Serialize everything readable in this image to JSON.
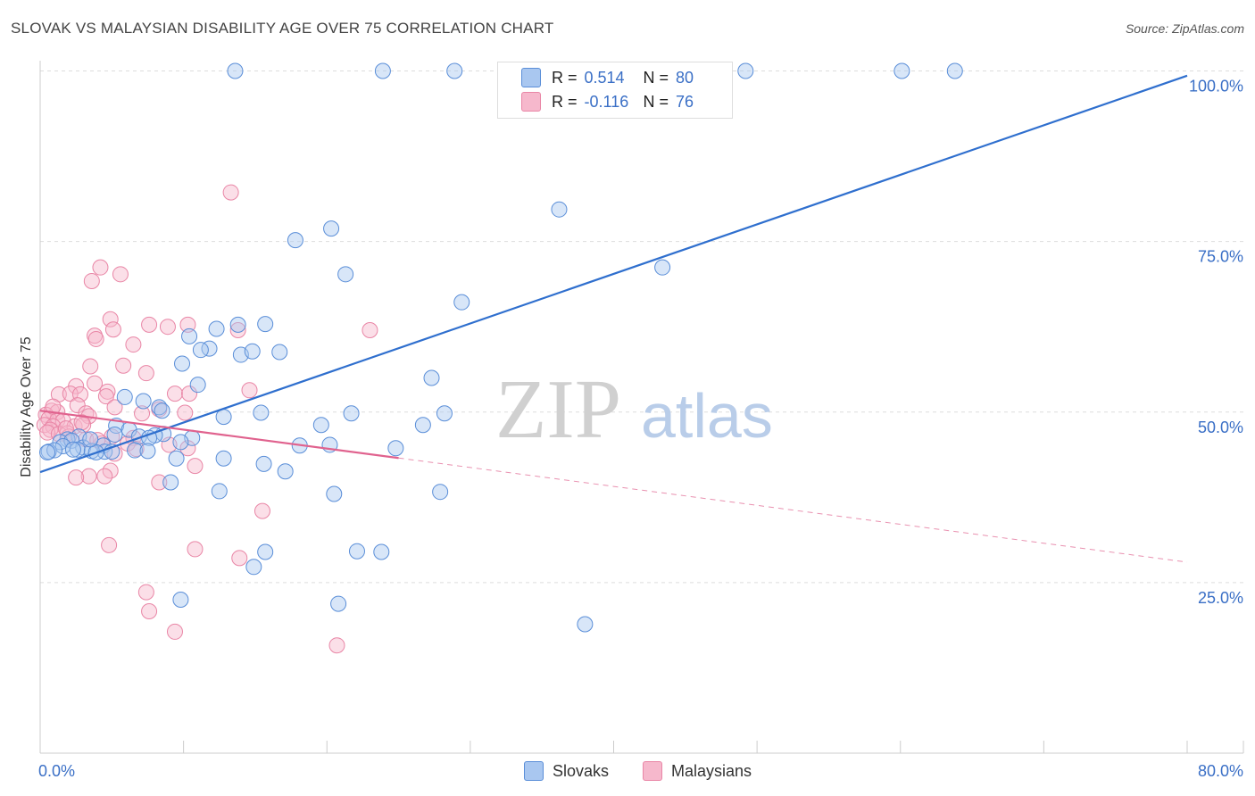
{
  "title": "SLOVAK VS MALAYSIAN DISABILITY AGE OVER 75 CORRELATION CHART",
  "source": "Source: ZipAtlas.com",
  "watermark": {
    "zip": "ZIP",
    "atlas": "atlas"
  },
  "legend": {
    "r_label": "R =",
    "n_label": "N =",
    "rows": [
      {
        "r": "0.514",
        "n": "80"
      },
      {
        "r": "-0.116",
        "n": "76"
      }
    ]
  },
  "bottom_legend": [
    "Slovaks",
    "Malaysians"
  ],
  "colors": {
    "slovak_fill": "#a9c7f0",
    "slovak_stroke": "#5a8ed8",
    "slovak_line": "#2f6fce",
    "malaysian_fill": "#f6b8cc",
    "malaysian_stroke": "#e986a6",
    "malaysian_line": "#e0628e",
    "axis_text": "#3a6fc6",
    "grid": "#dddddd"
  },
  "chart_data": {
    "type": "scatter",
    "title": "SLOVAK VS MALAYSIAN DISABILITY AGE OVER 75 CORRELATION CHART",
    "xlabel": "",
    "ylabel": "Disability Age Over 75",
    "xlim": [
      0,
      80
    ],
    "ylim": [
      0,
      104
    ],
    "x_tick_labels": [
      "0.0%",
      "80.0%"
    ],
    "y_ticks": [
      25,
      50,
      75,
      100
    ],
    "y_tick_labels": [
      "25.0%",
      "50.0%",
      "75.0%",
      "100.0%"
    ],
    "grid": true,
    "series": [
      {
        "name": "Slovaks",
        "points": [
          [
            13.6,
            100
          ],
          [
            23.9,
            100
          ],
          [
            28.9,
            100
          ],
          [
            49.2,
            100
          ],
          [
            60.1,
            100
          ],
          [
            63.8,
            100
          ],
          [
            36.2,
            79.7
          ],
          [
            20.3,
            76.9
          ],
          [
            17.8,
            75.2
          ],
          [
            43.4,
            71.2
          ],
          [
            21.3,
            70.2
          ],
          [
            29.4,
            66.1
          ],
          [
            13.8,
            62.8
          ],
          [
            15.7,
            62.9
          ],
          [
            12.3,
            62.2
          ],
          [
            10.4,
            61.1
          ],
          [
            11.8,
            59.3
          ],
          [
            11.2,
            59.1
          ],
          [
            14.0,
            58.4
          ],
          [
            14.8,
            58.9
          ],
          [
            16.7,
            58.8
          ],
          [
            9.9,
            57.1
          ],
          [
            27.3,
            55.0
          ],
          [
            11.0,
            54.0
          ],
          [
            7.2,
            51.6
          ],
          [
            5.9,
            52.2
          ],
          [
            8.3,
            50.7
          ],
          [
            8.5,
            50.2
          ],
          [
            15.4,
            49.9
          ],
          [
            21.7,
            49.8
          ],
          [
            28.2,
            49.8
          ],
          [
            12.8,
            49.3
          ],
          [
            19.6,
            48.1
          ],
          [
            26.7,
            48.1
          ],
          [
            5.3,
            48.0
          ],
          [
            6.2,
            47.4
          ],
          [
            8.6,
            46.8
          ],
          [
            8.0,
            46.6
          ],
          [
            6.9,
            46.4
          ],
          [
            7.6,
            46.2
          ],
          [
            10.6,
            46.2
          ],
          [
            2.7,
            46.4
          ],
          [
            1.9,
            46.0
          ],
          [
            1.4,
            45.6
          ],
          [
            2.2,
            45.8
          ],
          [
            4.4,
            45.1
          ],
          [
            3.0,
            44.8
          ],
          [
            1.6,
            45.0
          ],
          [
            0.6,
            44.2
          ],
          [
            2.6,
            44.5
          ],
          [
            4.5,
            44.2
          ],
          [
            3.6,
            44.3
          ],
          [
            5.0,
            44.2
          ],
          [
            3.9,
            44.1
          ],
          [
            6.6,
            44.4
          ],
          [
            7.5,
            44.3
          ],
          [
            9.8,
            45.6
          ],
          [
            18.1,
            45.1
          ],
          [
            20.2,
            45.2
          ],
          [
            24.8,
            44.7
          ],
          [
            9.5,
            43.2
          ],
          [
            12.8,
            43.2
          ],
          [
            15.6,
            42.4
          ],
          [
            17.1,
            41.3
          ],
          [
            9.1,
            39.7
          ],
          [
            12.5,
            38.4
          ],
          [
            20.5,
            38.0
          ],
          [
            27.9,
            38.3
          ],
          [
            22.1,
            29.6
          ],
          [
            23.8,
            29.5
          ],
          [
            15.7,
            29.5
          ],
          [
            14.9,
            27.3
          ],
          [
            9.8,
            22.5
          ],
          [
            20.8,
            21.9
          ],
          [
            38.0,
            18.9
          ],
          [
            3.5,
            46.0
          ],
          [
            5.2,
            46.7
          ],
          [
            1.0,
            44.4
          ],
          [
            2.3,
            44.5
          ],
          [
            0.5,
            44.1
          ]
        ]
      },
      {
        "name": "Malaysians",
        "points": [
          [
            13.3,
            82.2
          ],
          [
            4.2,
            71.2
          ],
          [
            5.6,
            70.2
          ],
          [
            3.6,
            69.2
          ],
          [
            4.9,
            63.6
          ],
          [
            7.6,
            62.8
          ],
          [
            10.3,
            62.8
          ],
          [
            8.9,
            62.5
          ],
          [
            5.1,
            62.1
          ],
          [
            13.8,
            62.0
          ],
          [
            23.0,
            62.0
          ],
          [
            3.8,
            61.2
          ],
          [
            3.9,
            60.7
          ],
          [
            6.5,
            59.9
          ],
          [
            3.5,
            56.7
          ],
          [
            5.8,
            56.8
          ],
          [
            7.4,
            55.7
          ],
          [
            3.8,
            54.2
          ],
          [
            2.5,
            53.8
          ],
          [
            4.7,
            53.0
          ],
          [
            1.3,
            52.6
          ],
          [
            2.1,
            52.7
          ],
          [
            2.8,
            52.6
          ],
          [
            4.6,
            52.3
          ],
          [
            9.4,
            52.7
          ],
          [
            10.4,
            52.7
          ],
          [
            14.6,
            53.2
          ],
          [
            2.6,
            51.0
          ],
          [
            5.2,
            50.7
          ],
          [
            0.8,
            50.2
          ],
          [
            1.2,
            50.0
          ],
          [
            3.2,
            49.8
          ],
          [
            3.4,
            49.4
          ],
          [
            7.1,
            49.8
          ],
          [
            8.3,
            50.4
          ],
          [
            10.1,
            49.9
          ],
          [
            0.4,
            49.6
          ],
          [
            0.6,
            49.0
          ],
          [
            1.2,
            48.8
          ],
          [
            1.6,
            48.7
          ],
          [
            0.3,
            48.1
          ],
          [
            0.9,
            47.9
          ],
          [
            2.4,
            47.9
          ],
          [
            3.0,
            48.1
          ],
          [
            0.7,
            47.4
          ],
          [
            0.5,
            47.0
          ],
          [
            1.3,
            46.8
          ],
          [
            1.9,
            46.9
          ],
          [
            2.0,
            46.4
          ],
          [
            3.2,
            46.0
          ],
          [
            5.0,
            46.4
          ],
          [
            6.5,
            46.2
          ],
          [
            4.3,
            45.4
          ],
          [
            6.1,
            45.4
          ],
          [
            9.0,
            45.2
          ],
          [
            10.3,
            44.7
          ],
          [
            6.7,
            44.6
          ],
          [
            5.2,
            43.9
          ],
          [
            10.8,
            42.1
          ],
          [
            4.9,
            41.4
          ],
          [
            3.4,
            40.6
          ],
          [
            2.5,
            40.4
          ],
          [
            4.5,
            40.6
          ],
          [
            8.3,
            39.7
          ],
          [
            15.5,
            35.5
          ],
          [
            4.8,
            30.5
          ],
          [
            10.8,
            29.9
          ],
          [
            13.9,
            28.6
          ],
          [
            7.4,
            23.6
          ],
          [
            7.6,
            20.8
          ],
          [
            9.4,
            17.8
          ],
          [
            20.7,
            15.8
          ],
          [
            1.8,
            47.6
          ],
          [
            2.9,
            48.5
          ],
          [
            0.9,
            50.8
          ],
          [
            4.0,
            45.9
          ]
        ]
      }
    ],
    "trend_lines": [
      {
        "series": "Slovaks",
        "x": [
          0,
          80
        ],
        "y": [
          41.2,
          99.3
        ]
      },
      {
        "series": "Malaysians",
        "solid_x": [
          0,
          25
        ],
        "dashed_x": [
          25,
          80
        ],
        "y_at_0": 50.2,
        "y_at_80": 28.0
      }
    ]
  }
}
